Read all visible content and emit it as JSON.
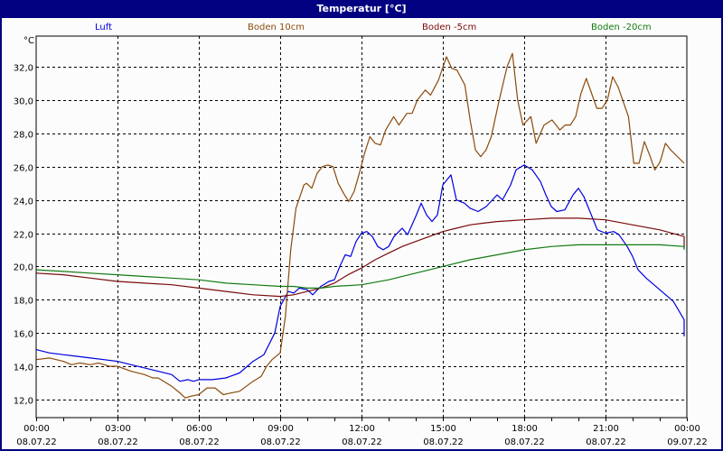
{
  "window": {
    "title": "Temperatur [°C]"
  },
  "chart_data": {
    "type": "line",
    "title": "Temperatur [°C]",
    "ylabel": "°C",
    "xlabel": "",
    "ylim": [
      11.0,
      33.8
    ],
    "xlim_hours": [
      0,
      24
    ],
    "grid": true,
    "legend_position": "top",
    "yticks": [
      "12,0",
      "14,0",
      "16,0",
      "18,0",
      "20,0",
      "22,0",
      "24,0",
      "26,0",
      "28,0",
      "30,0",
      "32,0"
    ],
    "ytick_values": [
      12,
      14,
      16,
      18,
      20,
      22,
      24,
      26,
      28,
      30,
      32
    ],
    "xticks": [
      {
        "time": "00:00",
        "date": "08.07.22",
        "h": 0
      },
      {
        "time": "03:00",
        "date": "08.07.22",
        "h": 3
      },
      {
        "time": "06:00",
        "date": "08.07.22",
        "h": 6
      },
      {
        "time": "09:00",
        "date": "08.07.22",
        "h": 9
      },
      {
        "time": "12:00",
        "date": "08.07.22",
        "h": 12
      },
      {
        "time": "15:00",
        "date": "08.07.22",
        "h": 15
      },
      {
        "time": "18:00",
        "date": "08.07.22",
        "h": 18
      },
      {
        "time": "21:00",
        "date": "08.07.22",
        "h": 21
      },
      {
        "time": "00:00",
        "date": "09.07.22",
        "h": 24
      }
    ],
    "series": [
      {
        "name": "Luft",
        "color": "#0000e0",
        "points": [
          [
            0,
            15.0
          ],
          [
            0.5,
            14.8
          ],
          [
            1,
            14.7
          ],
          [
            1.5,
            14.6
          ],
          [
            2,
            14.5
          ],
          [
            2.5,
            14.4
          ],
          [
            3,
            14.3
          ],
          [
            3.5,
            14.1
          ],
          [
            4,
            13.9
          ],
          [
            4.5,
            13.7
          ],
          [
            5,
            13.5
          ],
          [
            5.3,
            13.1
          ],
          [
            5.6,
            13.2
          ],
          [
            5.8,
            13.1
          ],
          [
            6,
            13.2
          ],
          [
            6.5,
            13.2
          ],
          [
            7,
            13.3
          ],
          [
            7.5,
            13.6
          ],
          [
            8,
            14.3
          ],
          [
            8.4,
            14.7
          ],
          [
            8.8,
            16.0
          ],
          [
            9,
            17.6
          ],
          [
            9.3,
            18.5
          ],
          [
            9.5,
            18.4
          ],
          [
            9.7,
            18.7
          ],
          [
            10,
            18.6
          ],
          [
            10.2,
            18.3
          ],
          [
            10.5,
            18.8
          ],
          [
            10.8,
            19.1
          ],
          [
            11,
            19.2
          ],
          [
            11.2,
            20.0
          ],
          [
            11.4,
            20.7
          ],
          [
            11.6,
            20.6
          ],
          [
            11.8,
            21.5
          ],
          [
            12,
            22.0
          ],
          [
            12.2,
            22.1
          ],
          [
            12.4,
            21.8
          ],
          [
            12.6,
            21.2
          ],
          [
            12.8,
            21.0
          ],
          [
            13,
            21.2
          ],
          [
            13.2,
            21.8
          ],
          [
            13.5,
            22.3
          ],
          [
            13.7,
            21.9
          ],
          [
            14,
            23.0
          ],
          [
            14.2,
            23.8
          ],
          [
            14.4,
            23.1
          ],
          [
            14.6,
            22.7
          ],
          [
            14.8,
            23.1
          ],
          [
            15,
            24.9
          ],
          [
            15.3,
            25.5
          ],
          [
            15.5,
            24.0
          ],
          [
            15.8,
            23.8
          ],
          [
            16,
            23.5
          ],
          [
            16.3,
            23.3
          ],
          [
            16.6,
            23.6
          ],
          [
            17,
            24.3
          ],
          [
            17.2,
            24.0
          ],
          [
            17.5,
            24.9
          ],
          [
            17.7,
            25.8
          ],
          [
            18,
            26.1
          ],
          [
            18.3,
            25.8
          ],
          [
            18.6,
            25.1
          ],
          [
            18.8,
            24.3
          ],
          [
            19,
            23.6
          ],
          [
            19.2,
            23.3
          ],
          [
            19.5,
            23.4
          ],
          [
            19.8,
            24.3
          ],
          [
            20,
            24.7
          ],
          [
            20.2,
            24.2
          ],
          [
            20.5,
            23.0
          ],
          [
            20.7,
            22.2
          ],
          [
            21,
            22.0
          ],
          [
            21.3,
            22.1
          ],
          [
            21.5,
            21.9
          ],
          [
            21.8,
            21.2
          ],
          [
            22,
            20.6
          ],
          [
            22.2,
            19.8
          ],
          [
            22.5,
            19.3
          ],
          [
            23,
            18.6
          ],
          [
            23.5,
            17.9
          ],
          [
            24,
            16.8
          ],
          [
            24.5,
            16.3
          ],
          [
            25,
            15.9
          ],
          [
            25.3,
            15.8
          ]
        ]
      },
      {
        "name": "Boden 10cm",
        "color": "#8b4a0a",
        "points": [
          [
            0,
            14.4
          ],
          [
            0.5,
            14.5
          ],
          [
            1,
            14.3
          ],
          [
            1.3,
            14.1
          ],
          [
            1.6,
            14.2
          ],
          [
            2,
            14.1
          ],
          [
            2.3,
            14.2
          ],
          [
            2.7,
            14.0
          ],
          [
            3,
            14.0
          ],
          [
            3.5,
            13.7
          ],
          [
            4,
            13.5
          ],
          [
            4.3,
            13.3
          ],
          [
            4.5,
            13.3
          ],
          [
            5,
            12.8
          ],
          [
            5.3,
            12.4
          ],
          [
            5.5,
            12.1
          ],
          [
            5.7,
            12.2
          ],
          [
            6,
            12.3
          ],
          [
            6.3,
            12.7
          ],
          [
            6.6,
            12.7
          ],
          [
            6.9,
            12.3
          ],
          [
            7.2,
            12.4
          ],
          [
            7.5,
            12.5
          ],
          [
            8,
            13.1
          ],
          [
            8.3,
            13.4
          ],
          [
            8.5,
            14.0
          ],
          [
            8.7,
            14.4
          ],
          [
            9,
            14.8
          ],
          [
            9.2,
            17.0
          ],
          [
            9.4,
            21.0
          ],
          [
            9.6,
            23.5
          ],
          [
            9.9,
            24.9
          ],
          [
            10,
            25.0
          ],
          [
            10.2,
            24.7
          ],
          [
            10.4,
            25.6
          ],
          [
            10.6,
            26.0
          ],
          [
            10.8,
            26.1
          ],
          [
            11,
            26.0
          ],
          [
            11.2,
            25.0
          ],
          [
            11.4,
            24.4
          ],
          [
            11.6,
            23.9
          ],
          [
            11.8,
            24.5
          ],
          [
            12,
            25.6
          ],
          [
            12.2,
            26.8
          ],
          [
            12.4,
            27.8
          ],
          [
            12.6,
            27.4
          ],
          [
            12.8,
            27.3
          ],
          [
            13,
            28.2
          ],
          [
            13.3,
            29.0
          ],
          [
            13.5,
            28.5
          ],
          [
            13.8,
            29.2
          ],
          [
            14,
            29.2
          ],
          [
            14.2,
            30.0
          ],
          [
            14.5,
            30.6
          ],
          [
            14.7,
            30.3
          ],
          [
            15,
            31.2
          ],
          [
            15.3,
            32.6
          ],
          [
            15.5,
            31.9
          ],
          [
            15.7,
            31.8
          ],
          [
            16,
            30.9
          ],
          [
            16.2,
            28.8
          ],
          [
            16.4,
            27.0
          ],
          [
            16.6,
            26.6
          ],
          [
            16.8,
            27.0
          ],
          [
            17,
            27.8
          ],
          [
            17.3,
            30.0
          ],
          [
            17.6,
            32.0
          ],
          [
            17.8,
            32.8
          ],
          [
            18,
            30.0
          ],
          [
            18.2,
            28.5
          ],
          [
            18.5,
            29.0
          ],
          [
            18.7,
            27.4
          ],
          [
            19,
            28.5
          ],
          [
            19.3,
            28.8
          ],
          [
            19.6,
            28.2
          ],
          [
            19.8,
            28.5
          ],
          [
            20,
            28.5
          ],
          [
            20.2,
            29.0
          ],
          [
            20.4,
            30.4
          ],
          [
            20.6,
            31.3
          ],
          [
            20.8,
            30.4
          ],
          [
            21,
            29.5
          ],
          [
            21.2,
            29.5
          ],
          [
            21.4,
            30.0
          ],
          [
            21.6,
            31.4
          ],
          [
            21.8,
            30.8
          ],
          [
            22,
            29.9
          ],
          [
            22.2,
            29.0
          ],
          [
            22.4,
            26.2
          ],
          [
            22.6,
            26.2
          ],
          [
            22.8,
            27.5
          ],
          [
            23,
            26.7
          ],
          [
            23.2,
            25.8
          ],
          [
            23.4,
            26.3
          ],
          [
            23.6,
            27.4
          ],
          [
            23.8,
            27.0
          ],
          [
            24,
            26.2
          ]
        ]
      },
      {
        "name": "Boden -5cm",
        "color": "#7a0a0a",
        "points": [
          [
            0,
            19.6
          ],
          [
            1,
            19.5
          ],
          [
            2,
            19.3
          ],
          [
            3,
            19.1
          ],
          [
            4,
            19.0
          ],
          [
            5,
            18.9
          ],
          [
            6,
            18.7
          ],
          [
            7,
            18.5
          ],
          [
            8,
            18.3
          ],
          [
            9,
            18.2
          ],
          [
            9.5,
            18.3
          ],
          [
            10,
            18.5
          ],
          [
            10.5,
            18.7
          ],
          [
            11,
            19.0
          ],
          [
            11.5,
            19.5
          ],
          [
            12,
            19.9
          ],
          [
            12.5,
            20.4
          ],
          [
            13,
            20.8
          ],
          [
            13.5,
            21.2
          ],
          [
            14,
            21.5
          ],
          [
            14.5,
            21.8
          ],
          [
            15,
            22.1
          ],
          [
            15.5,
            22.3
          ],
          [
            16,
            22.5
          ],
          [
            16.5,
            22.6
          ],
          [
            17,
            22.7
          ],
          [
            18,
            22.8
          ],
          [
            19,
            22.9
          ],
          [
            20,
            22.9
          ],
          [
            21,
            22.8
          ],
          [
            22,
            22.5
          ],
          [
            23,
            22.2
          ],
          [
            24,
            21.8
          ],
          [
            25,
            21.3
          ],
          [
            25.3,
            21.1
          ]
        ]
      },
      {
        "name": "Boden -20cm",
        "color": "#127a12",
        "points": [
          [
            0,
            19.8
          ],
          [
            1,
            19.7
          ],
          [
            2,
            19.6
          ],
          [
            3,
            19.5
          ],
          [
            4,
            19.4
          ],
          [
            5,
            19.3
          ],
          [
            6,
            19.2
          ],
          [
            7,
            19.0
          ],
          [
            8,
            18.9
          ],
          [
            9,
            18.8
          ],
          [
            9.5,
            18.8
          ],
          [
            10,
            18.7
          ],
          [
            10.5,
            18.7
          ],
          [
            11,
            18.8
          ],
          [
            12,
            18.9
          ],
          [
            13,
            19.2
          ],
          [
            14,
            19.6
          ],
          [
            15,
            20.0
          ],
          [
            16,
            20.4
          ],
          [
            17,
            20.7
          ],
          [
            18,
            21.0
          ],
          [
            19,
            21.2
          ],
          [
            20,
            21.3
          ],
          [
            21,
            21.3
          ],
          [
            22,
            21.3
          ],
          [
            23,
            21.3
          ],
          [
            24,
            21.2
          ],
          [
            25,
            21.0
          ],
          [
            25.3,
            21.0
          ]
        ]
      }
    ]
  }
}
